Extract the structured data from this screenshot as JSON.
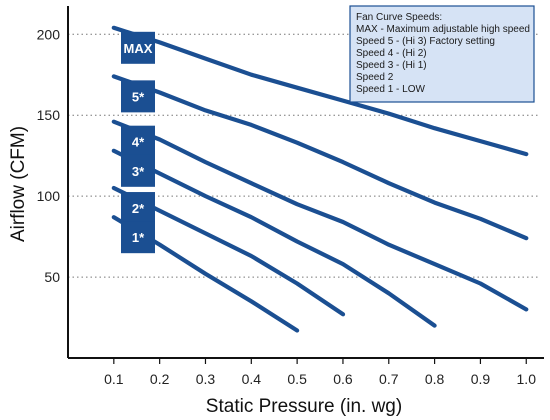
{
  "chart_data": {
    "type": "line",
    "xlabel": "Static Pressure (in. wg)",
    "ylabel": "Airflow (CFM)",
    "xlim": [
      0,
      1.03
    ],
    "ylim": [
      0,
      215
    ],
    "x_ticks": [
      "0.1",
      "0.2",
      "0.3",
      "0.4",
      "0.5",
      "0.6",
      "0.7",
      "0.8",
      "0.9",
      "1.0"
    ],
    "y_ticks": [
      "50",
      "100",
      "150",
      "200"
    ],
    "grid": "horizontal dotted",
    "legend_placement": "top-right",
    "legend": {
      "lines": [
        "Fan Curve Speeds:",
        "MAX - Maximum adjustable high speed",
        "Speed 5 - (Hi 3) Factory setting",
        "Speed 4 - (Hi 2)",
        "Speed 3 - (Hi 1)",
        "Speed 2",
        "Speed 1 - LOW"
      ]
    },
    "series": [
      {
        "badge": "MAX",
        "x": [
          0.1,
          0.2,
          0.3,
          0.4,
          0.5,
          0.6,
          0.7,
          0.8,
          0.9,
          1.0
        ],
        "y": [
          204,
          195,
          185,
          175,
          167,
          159,
          151,
          142,
          134,
          126
        ]
      },
      {
        "badge": "5*",
        "x": [
          0.1,
          0.2,
          0.3,
          0.4,
          0.5,
          0.6,
          0.7,
          0.8,
          0.9,
          1.0
        ],
        "y": [
          174,
          164,
          153,
          144,
          133,
          121,
          108,
          96,
          86,
          74
        ]
      },
      {
        "badge": "4*",
        "x": [
          0.1,
          0.2,
          0.3,
          0.4,
          0.5,
          0.6,
          0.7,
          0.8,
          0.9,
          1.0
        ],
        "y": [
          146,
          135,
          121,
          108,
          95,
          84,
          70,
          58,
          46,
          30
        ]
      },
      {
        "badge": "3*",
        "x": [
          0.1,
          0.2,
          0.3,
          0.4,
          0.5,
          0.6,
          0.7,
          0.8
        ],
        "y": [
          128,
          114,
          100,
          87,
          72,
          58,
          40,
          20
        ]
      },
      {
        "badge": "2*",
        "x": [
          0.1,
          0.2,
          0.3,
          0.4,
          0.5,
          0.6
        ],
        "y": [
          105,
          91,
          77,
          63,
          46,
          27
        ]
      },
      {
        "badge": "1*",
        "x": [
          0.1,
          0.2,
          0.3,
          0.4,
          0.5
        ],
        "y": [
          87,
          70,
          52,
          35,
          17
        ]
      }
    ],
    "colors": {
      "line": "#1b4f92",
      "badge": "#1b4f92",
      "legend_bg": "#d6e3f5",
      "legend_border": "#1b4f92"
    }
  }
}
